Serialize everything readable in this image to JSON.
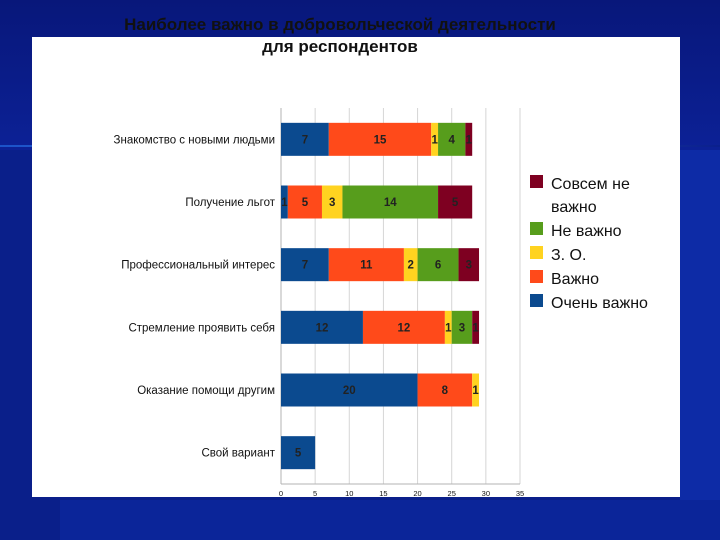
{
  "chart_data": {
    "type": "bar",
    "orientation": "horizontal",
    "stacked": true,
    "title": [
      "Наиболее важно в добровольческой деятельности",
      "для респондентов"
    ],
    "categories": [
      "Знакомство с новыми людьми",
      "Получение льгот",
      "Профессиональный интерес",
      "Стремление проявить себя",
      "Оказание помощи другим",
      "Свой вариант"
    ],
    "series": [
      {
        "name": "Очень важно",
        "color": "#0b4a8f",
        "values": [
          7,
          1,
          7,
          12,
          20,
          5
        ]
      },
      {
        "name": "Важно",
        "color": "#ff4a1a",
        "values": [
          15,
          5,
          11,
          12,
          8,
          0
        ]
      },
      {
        "name": "З. О.",
        "color": "#ffd320",
        "values": [
          1,
          3,
          2,
          1,
          1,
          0
        ]
      },
      {
        "name": "Не важно",
        "color": "#579d1c",
        "values": [
          4,
          14,
          6,
          3,
          0,
          0
        ]
      },
      {
        "name": "Совсем не важно",
        "color": "#7e0021",
        "values": [
          1,
          5,
          3,
          1,
          0,
          0
        ]
      }
    ],
    "xlim": [
      0,
      35
    ],
    "xticks": [
      0,
      5,
      10,
      15,
      20,
      25,
      30,
      35
    ],
    "legend": [
      "Совсем не важно",
      "Не важно",
      "З. О.",
      "Важно",
      "Очень важно"
    ],
    "legend_lines": [
      [
        "Совсем не",
        "важно"
      ],
      [
        "Не важно"
      ],
      [
        "З. О."
      ],
      [
        "Важно"
      ],
      [
        "Очень важно"
      ]
    ],
    "legend_position": "right"
  }
}
